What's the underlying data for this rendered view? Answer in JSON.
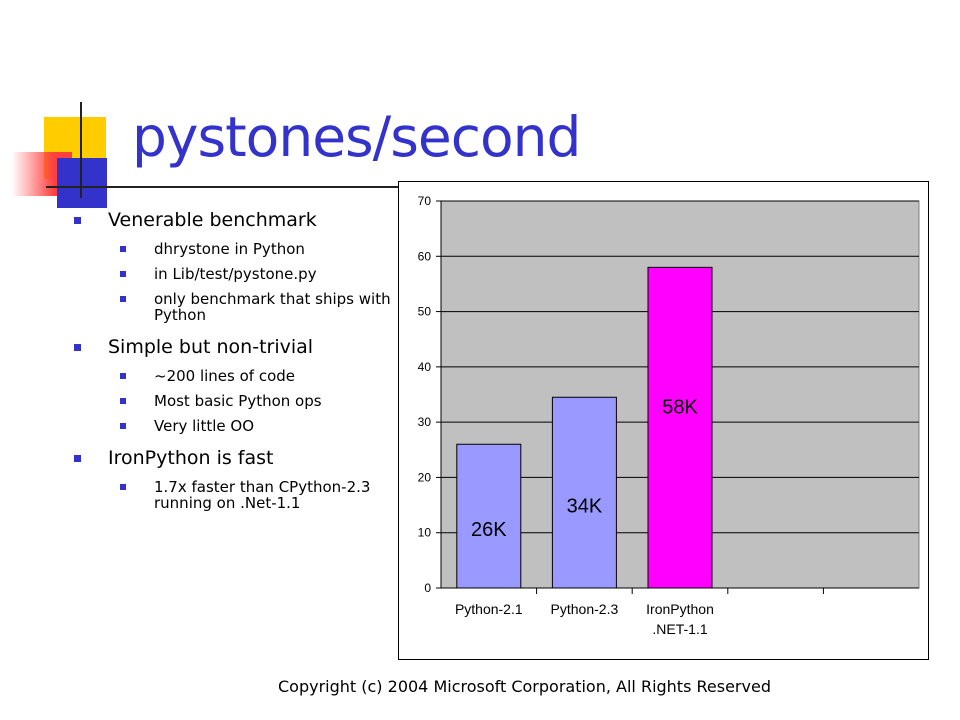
{
  "slide": {
    "title": "pystones/second",
    "footer": "Copyright (c) 2004 Microsoft Corporation, All Rights Reserved",
    "title_color": "#3333cc",
    "accent_colors": [
      "#ffcc00",
      "#3333cc",
      "#ff4040"
    ]
  },
  "bullets": [
    {
      "text": "Venerable benchmark",
      "sub": [
        "dhrystone in Python",
        "in Lib/test/pystone.py",
        "only benchmark that ships with Python"
      ]
    },
    {
      "text": "Simple but non-trivial",
      "sub": [
        "~200 lines of code",
        "Most basic Python ops",
        "Very little OO"
      ]
    },
    {
      "text": "IronPython is fast",
      "sub": [
        "1.7x faster than CPython-2.3 running on .Net-1.1"
      ]
    }
  ],
  "chart_data": {
    "type": "bar",
    "categories": [
      "Python-2.1",
      "Python-2.3",
      "IronPython .NET-1.1",
      "",
      ""
    ],
    "values": [
      26,
      34.5,
      58,
      null,
      null
    ],
    "data_labels": [
      "26K",
      "34K",
      "58K",
      "",
      ""
    ],
    "colors": [
      "#9999ff",
      "#9999ff",
      "#ff00ff"
    ],
    "plot_background": "#c0c0c0",
    "ylim": [
      0,
      70
    ],
    "yticks": [
      0,
      10,
      20,
      30,
      40,
      50,
      60,
      70
    ],
    "grid": true,
    "legend": "none"
  }
}
